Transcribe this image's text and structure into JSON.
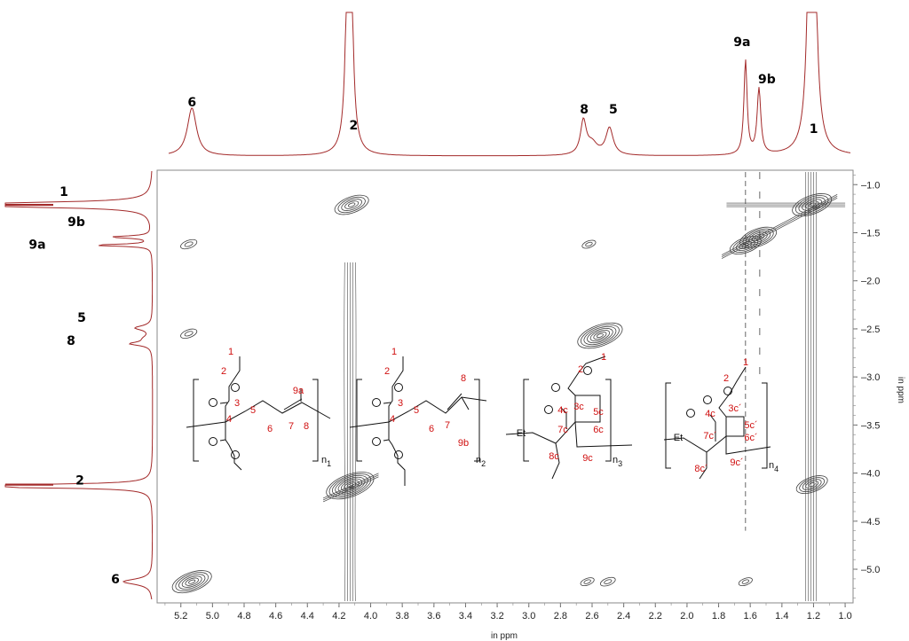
{
  "chart_data": {
    "type": "2D-NMR contour plot (homonuclear)",
    "x_axis": {
      "title": "in ppm",
      "range": [
        5.35,
        0.95
      ],
      "ticks": [
        "5.2",
        "5.0",
        "4.8",
        "4.6",
        "4.4",
        "4.2",
        "4.0",
        "3.8",
        "3.6",
        "3.4",
        "3.2",
        "3.0",
        "2.8",
        "2.6",
        "2.4",
        "2.2",
        "2.0",
        "1.8",
        "1.6",
        "1.4",
        "1.2",
        "1.0"
      ]
    },
    "y_axis": {
      "title": "in ppm",
      "range": [
        0.85,
        5.35
      ],
      "ticks": [
        "1.0",
        "1.5",
        "2.0",
        "2.5",
        "3.0",
        "3.5",
        "4.0",
        "4.5",
        "5.0"
      ]
    },
    "projection_peaks": [
      {
        "label": "6",
        "shift": 5.13
      },
      {
        "label": "2",
        "shift": 4.13
      },
      {
        "label": "8",
        "shift": 2.65
      },
      {
        "label": "5",
        "shift": 2.5
      },
      {
        "label": "9a",
        "shift": 1.63
      },
      {
        "label": "9b",
        "shift": 1.54
      },
      {
        "label": "1",
        "shift": 1.21
      }
    ],
    "side_peak_labels": [
      {
        "label": "1",
        "shift": 1.21
      },
      {
        "label": "9b",
        "shift": 1.54
      },
      {
        "label": "9a",
        "shift": 1.63
      },
      {
        "label": "5",
        "shift": 2.5
      },
      {
        "label": "8",
        "shift": 2.63
      },
      {
        "label": "2",
        "shift": 4.12
      },
      {
        "label": "6",
        "shift": 5.11
      }
    ],
    "cross_peaks": [
      {
        "x": 4.12,
        "y": 1.21,
        "size": 1.0
      },
      {
        "x": 1.21,
        "y": 4.12,
        "size": 0.9
      },
      {
        "x": 1.21,
        "y": 1.21,
        "size": 1.2
      },
      {
        "x": 1.55,
        "y": 1.55,
        "size": 1.1
      },
      {
        "x": 1.63,
        "y": 1.63,
        "size": 0.9
      },
      {
        "x": 5.13,
        "y": 5.13,
        "size": 1.2
      },
      {
        "x": 4.13,
        "y": 4.13,
        "size": 1.5
      },
      {
        "x": 2.55,
        "y": 2.57,
        "size": 1.4
      },
      {
        "x": 5.15,
        "y": 1.62,
        "size": 0.35
      },
      {
        "x": 5.15,
        "y": 2.55,
        "size": 0.35
      },
      {
        "x": 2.62,
        "y": 1.62,
        "size": 0.25
      },
      {
        "x": 2.5,
        "y": 5.13,
        "size": 0.3
      },
      {
        "x": 2.63,
        "y": 5.13,
        "size": 0.25
      },
      {
        "x": 1.63,
        "y": 5.13,
        "size": 0.25
      }
    ],
    "structures": [
      {
        "id": "n1",
        "red_labels": [
          "1",
          "2",
          "3",
          "4",
          "5",
          "6",
          "7",
          "8",
          "9a"
        ],
        "subscript": "n",
        "subscript_index": "1"
      },
      {
        "id": "n2",
        "red_labels": [
          "1",
          "2",
          "3",
          "4",
          "5",
          "6",
          "7",
          "8",
          "9b"
        ],
        "subscript": "n",
        "subscript_index": "2"
      },
      {
        "id": "n3",
        "red_labels": [
          "1",
          "2",
          "3c",
          "4c",
          "5c",
          "6c",
          "7c",
          "8c",
          "9c"
        ],
        "black_labels": [
          "Et"
        ],
        "subscript": "n",
        "subscript_index": "3"
      },
      {
        "id": "n4",
        "red_labels": [
          "1",
          "2",
          "3c´",
          "4c",
          "5c´",
          "6c´",
          "7c´",
          "8c´",
          "9c´"
        ],
        "black_labels": [
          "Et"
        ],
        "subscript": "n",
        "subscript_index": "4"
      }
    ],
    "colors": {
      "projection_line": "#a32a2a",
      "contour": "#404040",
      "label_red": "#d01010"
    }
  }
}
